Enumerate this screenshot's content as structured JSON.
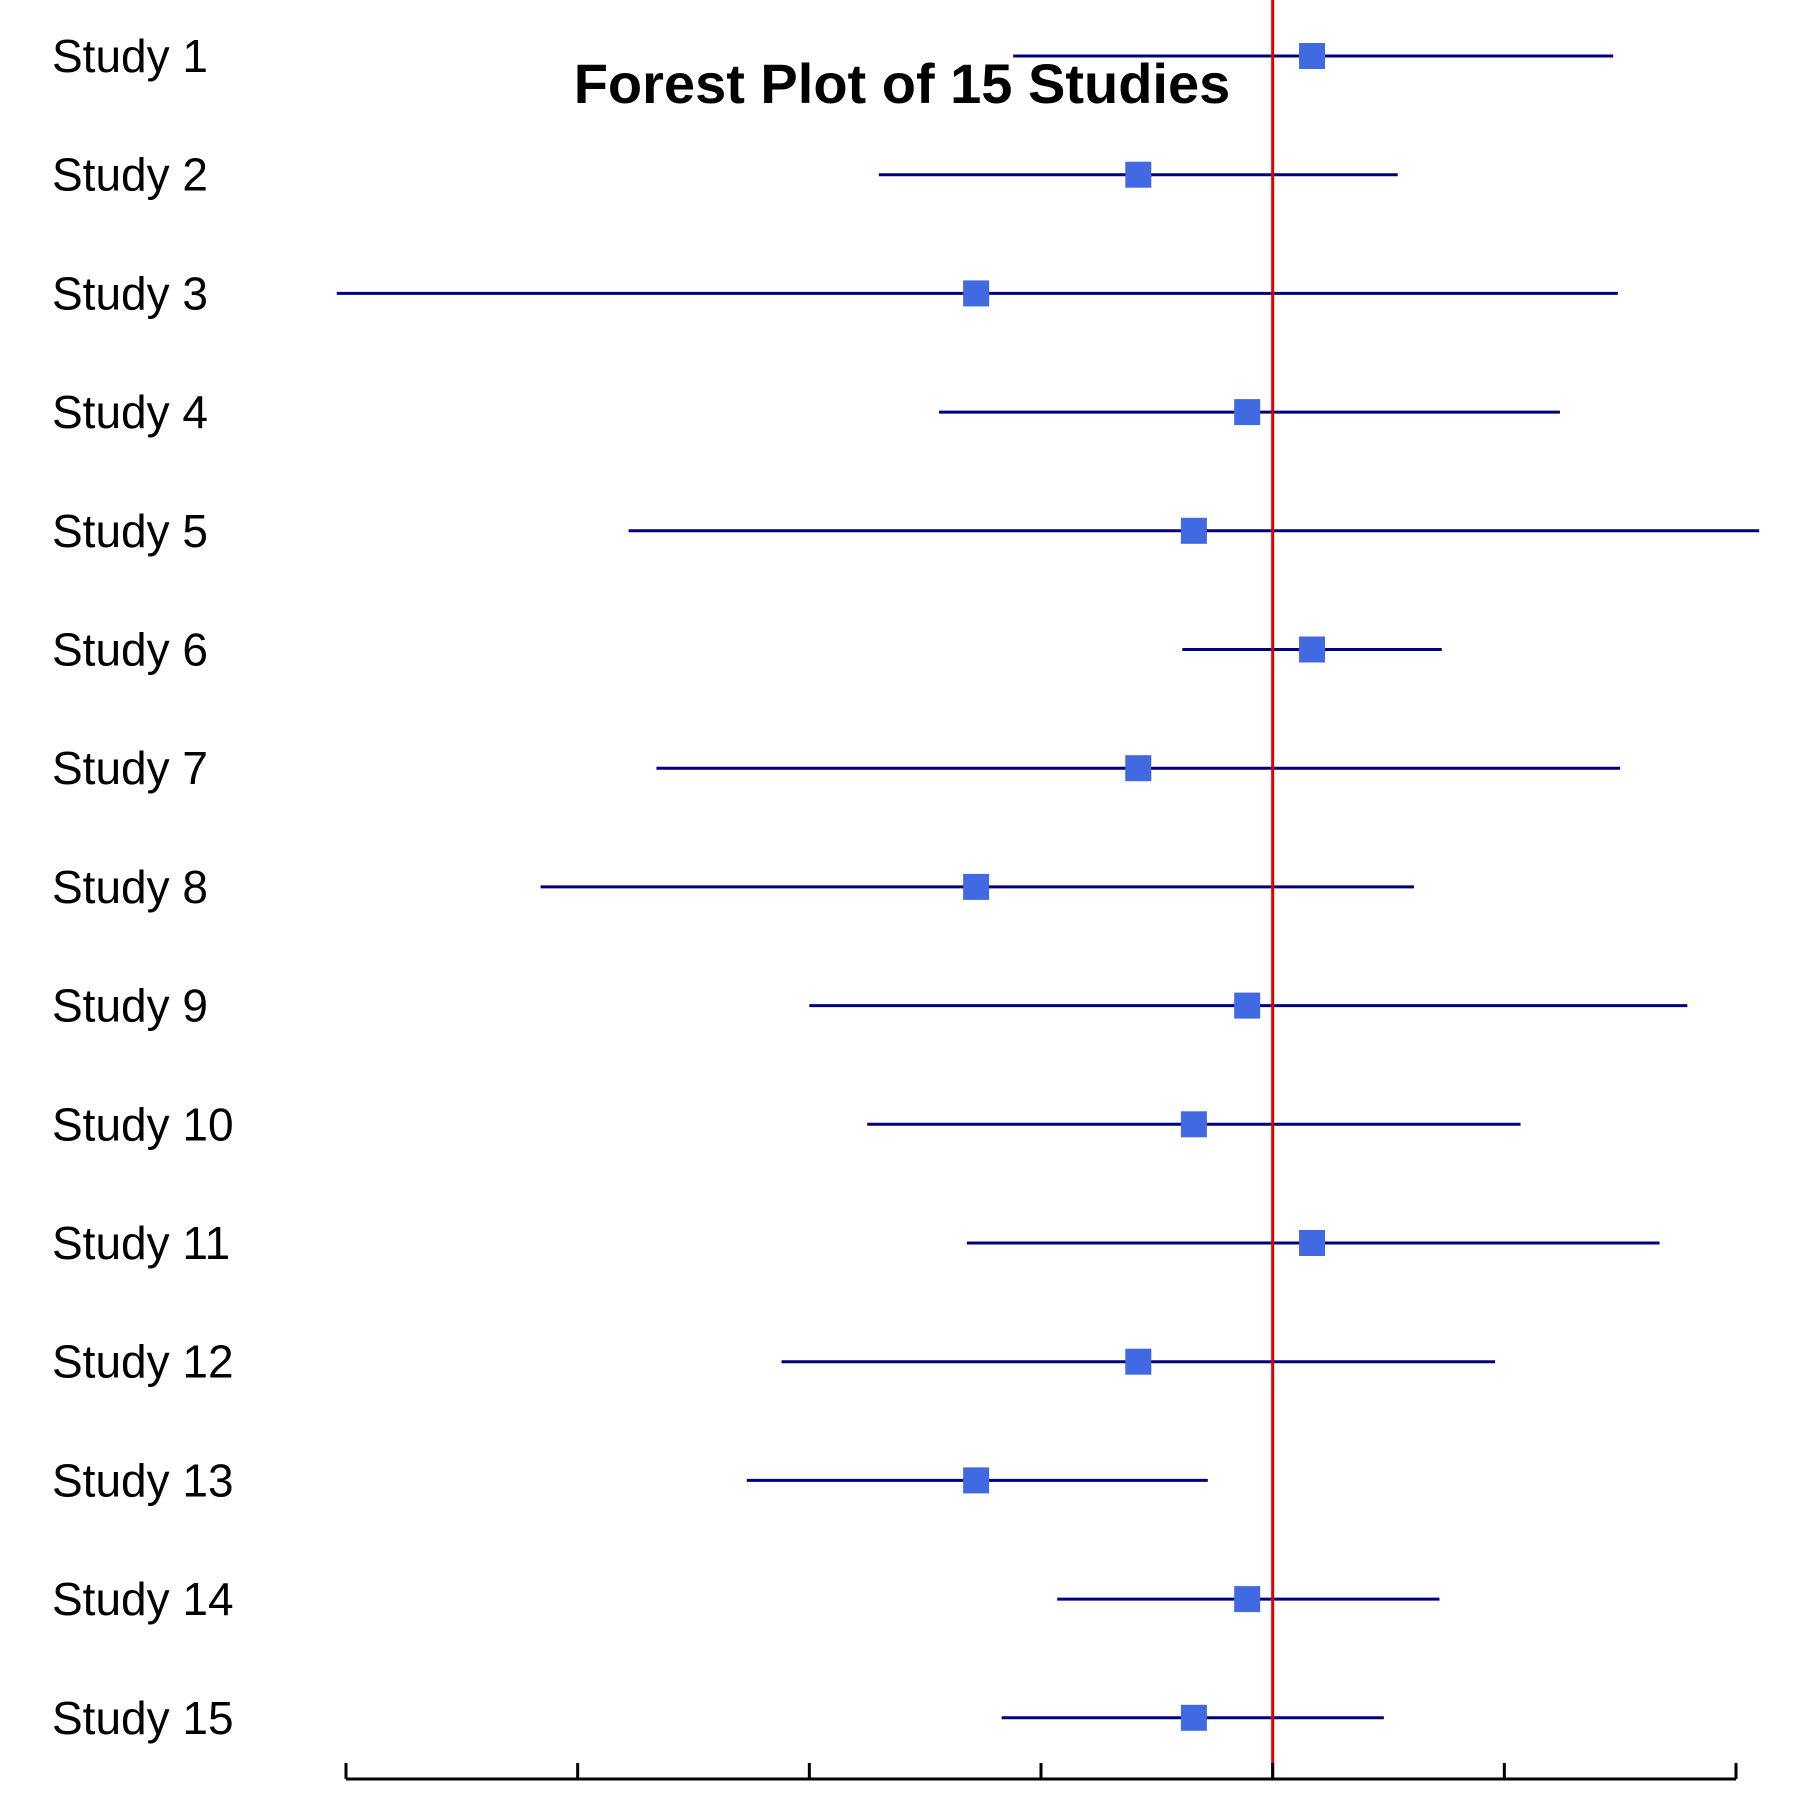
{
  "chart_data": {
    "type": "forest",
    "title": "Forest Plot of 15 Studies",
    "xlabel": "",
    "ylabel": "",
    "xlim": [
      -4,
      2
    ],
    "x_ticks": [
      -4,
      -3,
      -2,
      -1,
      0,
      1,
      2
    ],
    "x_tick_labels_shown": false,
    "reference_line_x": 0,
    "grid": false,
    "legend": "none",
    "colors": {
      "point": "#4169e1",
      "ci_line": "#00007f",
      "reference_line": "#e00000",
      "axis": "#000000"
    },
    "studies": [
      {
        "label": "Study 1",
        "estimate": 0.17,
        "ci_lower": -1.12,
        "ci_upper": 1.47
      },
      {
        "label": "Study 2",
        "estimate": -0.58,
        "ci_lower": -1.7,
        "ci_upper": 0.54
      },
      {
        "label": "Study 3",
        "estimate": -1.28,
        "ci_lower": -4.04,
        "ci_upper": 1.49
      },
      {
        "label": "Study 4",
        "estimate": -0.11,
        "ci_lower": -1.44,
        "ci_upper": 1.24
      },
      {
        "label": "Study 5",
        "estimate": -0.34,
        "ci_lower": -2.78,
        "ci_upper": 2.1
      },
      {
        "label": "Study 6",
        "estimate": 0.17,
        "ci_lower": -0.39,
        "ci_upper": 0.73
      },
      {
        "label": "Study 7",
        "estimate": -0.58,
        "ci_lower": -2.66,
        "ci_upper": 1.5
      },
      {
        "label": "Study 8",
        "estimate": -1.28,
        "ci_lower": -3.16,
        "ci_upper": 0.61
      },
      {
        "label": "Study 9",
        "estimate": -0.11,
        "ci_lower": -2.0,
        "ci_upper": 1.79
      },
      {
        "label": "Study 10",
        "estimate": -0.34,
        "ci_lower": -1.75,
        "ci_upper": 1.07
      },
      {
        "label": "Study 11",
        "estimate": 0.17,
        "ci_lower": -1.32,
        "ci_upper": 1.67
      },
      {
        "label": "Study 12",
        "estimate": -0.58,
        "ci_lower": -2.12,
        "ci_upper": 0.96
      },
      {
        "label": "Study 13",
        "estimate": -1.28,
        "ci_lower": -2.27,
        "ci_upper": -0.28
      },
      {
        "label": "Study 14",
        "estimate": -0.11,
        "ci_lower": -0.93,
        "ci_upper": 0.72
      },
      {
        "label": "Study 15",
        "estimate": -0.34,
        "ci_lower": -1.17,
        "ci_upper": 0.48
      }
    ]
  }
}
